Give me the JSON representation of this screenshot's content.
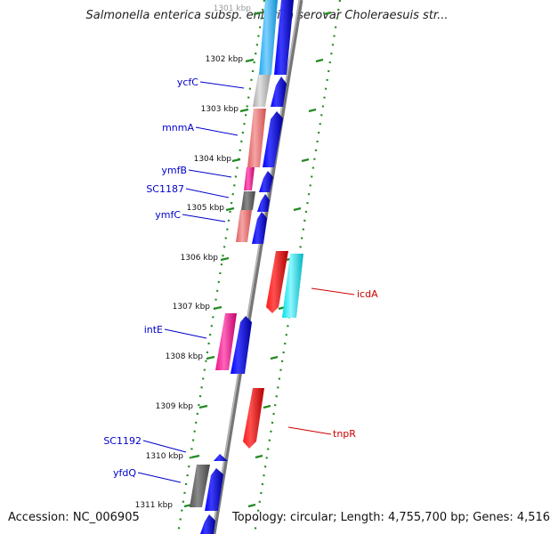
{
  "title": "Salmonella enterica subsp. enterica serovar Choleraesuis str...",
  "footer": {
    "accession": "Accession: NC_006905",
    "topology": "Topology: circular; Length: 4,755,700 bp; Genes: 4,516"
  },
  "ticks": [
    "1301 kbp",
    "1302 kbp",
    "1303 kbp",
    "1304 kbp",
    "1305 kbp",
    "1306 kbp",
    "1307 kbp",
    "1308 kbp",
    "1309 kbp",
    "1310 kbp",
    "1311 kbp"
  ],
  "gene_labels": [
    {
      "name": "ycfC",
      "strand": "forward",
      "color": "#0000cc"
    },
    {
      "name": "mnmA",
      "strand": "forward",
      "color": "#0000cc"
    },
    {
      "name": "ymfB",
      "strand": "forward",
      "color": "#0000cc"
    },
    {
      "name": "SC1187",
      "strand": "forward",
      "color": "#0000cc"
    },
    {
      "name": "ymfC",
      "strand": "forward",
      "color": "#0000cc"
    },
    {
      "name": "intE",
      "strand": "forward",
      "color": "#0000cc"
    },
    {
      "name": "SC1192",
      "strand": "forward",
      "color": "#0000cc"
    },
    {
      "name": "yfdQ",
      "strand": "forward",
      "color": "#0000cc"
    },
    {
      "name": "icdA",
      "strand": "reverse",
      "color": "#cc0000"
    },
    {
      "name": "tnpR",
      "strand": "reverse",
      "color": "#cc0000"
    }
  ],
  "colors": {
    "backbone": "#888888",
    "forward_gene": "#0000ee",
    "reverse_gene": "#ee0000",
    "tick_marks": "#228b22"
  }
}
